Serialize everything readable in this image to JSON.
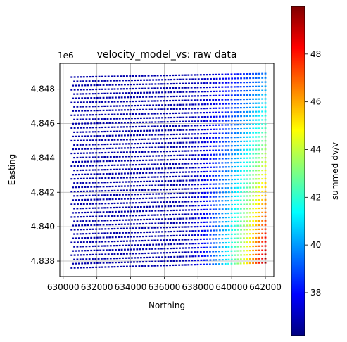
{
  "chart_data": {
    "type": "scatter",
    "title": "velocity_model_vs: raw data",
    "xlabel": "Northing",
    "ylabel": "Easting",
    "y_offset_label": "1e6",
    "xlim": [
      629800,
      642500
    ],
    "ylim": [
      4837100,
      4849500
    ],
    "x_ticks": [
      630000,
      632000,
      634000,
      636000,
      638000,
      640000,
      642000
    ],
    "x_tick_labels": [
      "630000",
      "632000",
      "634000",
      "636000",
      "638000",
      "640000",
      "642000"
    ],
    "y_ticks": [
      4838000,
      4840000,
      4842000,
      4844000,
      4846000,
      4848000
    ],
    "y_tick_labels": [
      "4.838",
      "4.840",
      "4.842",
      "4.844",
      "4.846",
      "4.848"
    ],
    "grid": true,
    "colormap": "jet",
    "colorbar": {
      "label": "summed dv/v",
      "range": [
        36.2,
        50.0
      ],
      "ticks": [
        38,
        40,
        42,
        44,
        46,
        48
      ],
      "tick_labels": [
        "38",
        "40",
        "42",
        "44",
        "46",
        "48"
      ]
    },
    "data_extent": {
      "x": [
        630500,
        642000
      ],
      "y_west": [
        4837600,
        4848700
      ],
      "y_east": [
        4837900,
        4848900
      ],
      "rows": 46
    },
    "value_field": {
      "base": 36.8,
      "east_peak_south": 49.5,
      "east_peak_north": 39.5,
      "gradient_start_x": 637000
    }
  }
}
